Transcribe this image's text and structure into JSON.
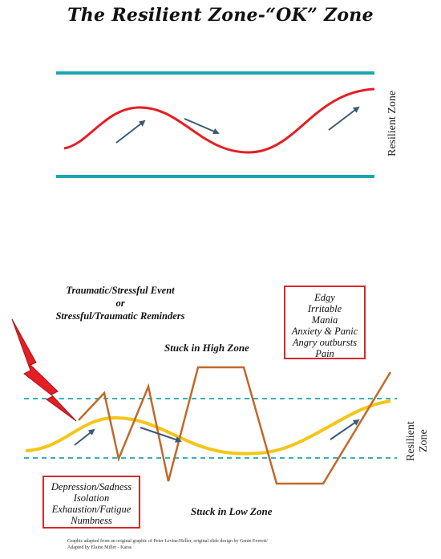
{
  "title": "The Resilient Zone-“OK” Zone",
  "top_diagram": {
    "zone_label": "Resilient Zone"
  },
  "bottom_diagram": {
    "event_lines": [
      "Traumatic/Stressful Event",
      "or",
      "Stressful/Traumatic Reminders"
    ],
    "high_box_lines": [
      "Edgy",
      "Irritable",
      "Mania",
      "Anxiety & Panic",
      "Angry outbursts",
      "Pain"
    ],
    "high_zone_label": "Stuck in High Zone",
    "low_box_lines": [
      "Depression/Sadness",
      "Isolation",
      "Exhaustion/Fatigue",
      "Numbness"
    ],
    "low_zone_label": "Stuck in Low Zone",
    "zone_label_lines": [
      "Resilient",
      "Zone"
    ]
  },
  "credit_lines": [
    "Graphic adapted from an original graphic of Peter Levine/Heller, original slide design by Genie Everett/",
    "Adapted by Elaine Miller - Karas"
  ],
  "colors": {
    "teal": "#1aa6b1",
    "red": "#e51e25",
    "arrow": "#3b5a78",
    "yellow": "#f5c518",
    "brown": "#c0692a",
    "box_border": "#d9262b"
  }
}
